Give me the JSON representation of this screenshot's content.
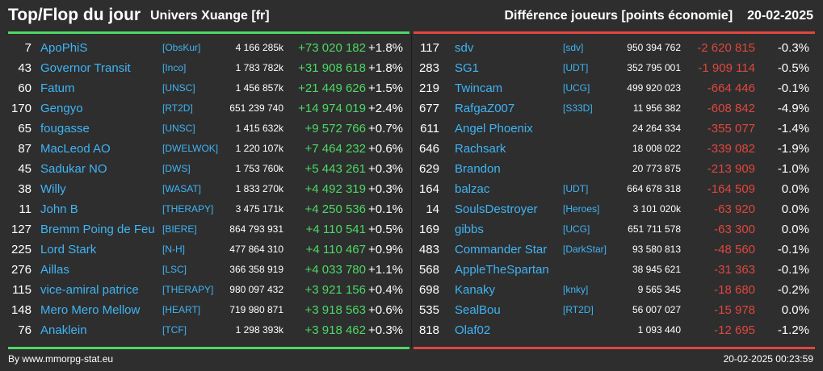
{
  "header": {
    "title": "Top/Flop du jour",
    "subtitle": "Univers Xuange [fr]",
    "metric": "Différence joueurs [points économie]",
    "date": "20-02-2025"
  },
  "colors": {
    "background": "#2e2e2e",
    "top_accent": "#4cd964",
    "flop_accent": "#e0463e",
    "name": "#3fb4f5"
  },
  "top": [
    {
      "rank": "7",
      "name": "ApoPhiS",
      "alliance": "[ObsKur]",
      "points": "4 166 285k",
      "diff": "+73 020 182",
      "pct": "+1.8%"
    },
    {
      "rank": "43",
      "name": "Governor Transit",
      "alliance": "[Inco]",
      "points": "1 783 782k",
      "diff": "+31 908 618",
      "pct": "+1.8%"
    },
    {
      "rank": "60",
      "name": "Fatum",
      "alliance": "[UNSC]",
      "points": "1 456 857k",
      "diff": "+21 449 626",
      "pct": "+1.5%"
    },
    {
      "rank": "170",
      "name": "Gengyo",
      "alliance": "[RT2D]",
      "points": "651 239 740",
      "diff": "+14 974 019",
      "pct": "+2.4%"
    },
    {
      "rank": "65",
      "name": "fougasse",
      "alliance": "[UNSC]",
      "points": "1 415 632k",
      "diff": "+9 572 766",
      "pct": "+0.7%"
    },
    {
      "rank": "87",
      "name": "MacLeod AO",
      "alliance": "[DWELWOK]",
      "points": "1 220 107k",
      "diff": "+7 464 232",
      "pct": "+0.6%"
    },
    {
      "rank": "45",
      "name": "Sadukar NO",
      "alliance": "[DWS]",
      "points": "1 753 760k",
      "diff": "+5 443 261",
      "pct": "+0.3%"
    },
    {
      "rank": "38",
      "name": "Willy",
      "alliance": "[WASAT]",
      "points": "1 833 270k",
      "diff": "+4 492 319",
      "pct": "+0.3%"
    },
    {
      "rank": "11",
      "name": "John B",
      "alliance": "[THERAPY]",
      "points": "3 475 171k",
      "diff": "+4 250 536",
      "pct": "+0.1%"
    },
    {
      "rank": "127",
      "name": "Bremm Poing de Feu",
      "alliance": "[BIERE]",
      "points": "864 793 931",
      "diff": "+4 110 541",
      "pct": "+0.5%"
    },
    {
      "rank": "225",
      "name": "Lord Stark",
      "alliance": "[N-H]",
      "points": "477 864 310",
      "diff": "+4 110 467",
      "pct": "+0.9%"
    },
    {
      "rank": "276",
      "name": "Aillas",
      "alliance": "[LSC]",
      "points": "366 358 919",
      "diff": "+4 033 780",
      "pct": "+1.1%"
    },
    {
      "rank": "115",
      "name": "vice-amiral patrice",
      "alliance": "[THERAPY]",
      "points": "980 097 432",
      "diff": "+3 921 156",
      "pct": "+0.4%"
    },
    {
      "rank": "148",
      "name": "Mero Mero Mellow",
      "alliance": "[HEART]",
      "points": "719 980 871",
      "diff": "+3 918 563",
      "pct": "+0.6%"
    },
    {
      "rank": "76",
      "name": "Anaklein",
      "alliance": "[TCF]",
      "points": "1 298 393k",
      "diff": "+3 918 462",
      "pct": "+0.3%"
    }
  ],
  "flop": [
    {
      "rank": "117",
      "name": "sdv",
      "alliance": "[sdv]",
      "points": "950 394 762",
      "diff": "-2 620 815",
      "pct": "-0.3%"
    },
    {
      "rank": "283",
      "name": "SG1",
      "alliance": "[UDT]",
      "points": "352 795 001",
      "diff": "-1 909 114",
      "pct": "-0.5%"
    },
    {
      "rank": "219",
      "name": "Twincam",
      "alliance": "[UCG]",
      "points": "499 920 023",
      "diff": "-664 446",
      "pct": "-0.1%"
    },
    {
      "rank": "677",
      "name": "RafgaZ007",
      "alliance": "[S33D]",
      "points": "11 956 382",
      "diff": "-608 842",
      "pct": "-4.9%"
    },
    {
      "rank": "611",
      "name": "Angel Phoenix",
      "alliance": "",
      "points": "24 264 334",
      "diff": "-355 077",
      "pct": "-1.4%"
    },
    {
      "rank": "646",
      "name": "Rachsark",
      "alliance": "",
      "points": "18 008 022",
      "diff": "-339 082",
      "pct": "-1.9%"
    },
    {
      "rank": "629",
      "name": "Brandon",
      "alliance": "",
      "points": "20 773 875",
      "diff": "-213 909",
      "pct": "-1.0%"
    },
    {
      "rank": "164",
      "name": "balzac",
      "alliance": "[UDT]",
      "points": "664 678 318",
      "diff": "-164 509",
      "pct": "0.0%"
    },
    {
      "rank": "14",
      "name": "SoulsDestroyer",
      "alliance": "[Heroes]",
      "points": "3 101 020k",
      "diff": "-63 920",
      "pct": "0.0%"
    },
    {
      "rank": "169",
      "name": "gibbs",
      "alliance": "[UCG]",
      "points": "651 711 578",
      "diff": "-63 300",
      "pct": "0.0%"
    },
    {
      "rank": "483",
      "name": "Commander Star",
      "alliance": "[DarkStar]",
      "points": "93 580 813",
      "diff": "-48 560",
      "pct": "-0.1%"
    },
    {
      "rank": "568",
      "name": "AppleTheSpartan",
      "alliance": "",
      "points": "38 945 621",
      "diff": "-31 363",
      "pct": "-0.1%"
    },
    {
      "rank": "698",
      "name": "Kanaky",
      "alliance": "[knky]",
      "points": "9 565 345",
      "diff": "-18 680",
      "pct": "-0.2%"
    },
    {
      "rank": "535",
      "name": "SealBou",
      "alliance": "[RT2D]",
      "points": "56 007 027",
      "diff": "-15 978",
      "pct": "0.0%"
    },
    {
      "rank": "818",
      "name": "Olaf02",
      "alliance": "",
      "points": "1 093 440",
      "diff": "-12 695",
      "pct": "-1.2%"
    }
  ],
  "footer": {
    "credit": "By www.mmorpg-stat.eu",
    "timestamp": "20-02-2025 00:23:59"
  }
}
